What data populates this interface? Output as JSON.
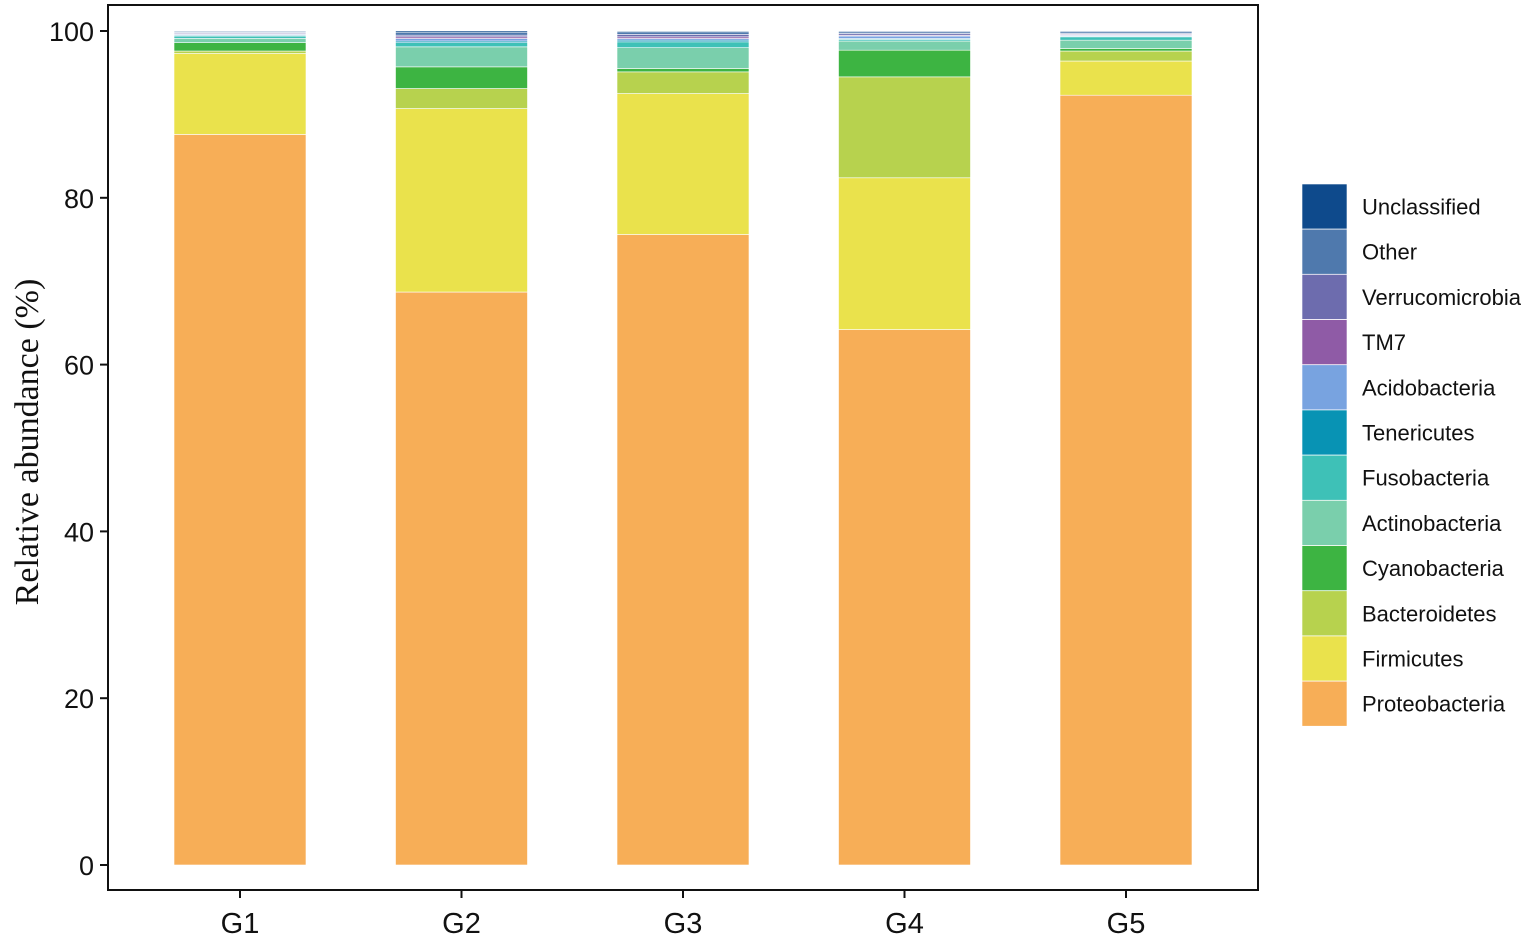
{
  "chart_data": {
    "type": "bar",
    "stacked": true,
    "title": "",
    "xlabel": "",
    "ylabel": "Relative abundance (%)",
    "ylim": [
      0,
      100
    ],
    "yticks": [
      0,
      20,
      40,
      60,
      80,
      100
    ],
    "categories": [
      "G1",
      "G2",
      "G3",
      "G4",
      "G5"
    ],
    "legend_position": "right",
    "grid": false,
    "series": [
      {
        "name": "Proteobacteria",
        "color": "#F7AE57",
        "values": [
          87.6,
          68.7,
          75.6,
          64.2,
          92.3
        ]
      },
      {
        "name": "Firmicutes",
        "color": "#EAE24C",
        "values": [
          9.7,
          22.0,
          16.9,
          18.2,
          4.1
        ]
      },
      {
        "name": "Bacteroidetes",
        "color": "#B7D24E",
        "values": [
          0.3,
          2.4,
          2.6,
          12.1,
          1.2
        ]
      },
      {
        "name": "Cyanobacteria",
        "color": "#3DB442",
        "values": [
          1.0,
          2.6,
          0.4,
          3.2,
          0.3
        ]
      },
      {
        "name": "Actinobacteria",
        "color": "#7ACFAC",
        "values": [
          0.5,
          2.4,
          2.5,
          1.1,
          1.0
        ]
      },
      {
        "name": "Fusobacteria",
        "color": "#3EC1B7",
        "values": [
          0.3,
          0.5,
          0.7,
          0.2,
          0.4
        ]
      },
      {
        "name": "Tenericutes",
        "color": "#0893B4",
        "values": [
          0.1,
          0.2,
          0.2,
          0.1,
          0.1
        ]
      },
      {
        "name": "Acidobacteria",
        "color": "#78A3E0",
        "values": [
          0.1,
          0.3,
          0.2,
          0.3,
          0.1
        ]
      },
      {
        "name": "TM7",
        "color": "#8F5BA6",
        "values": [
          0.1,
          0.2,
          0.2,
          0.1,
          0.1
        ]
      },
      {
        "name": "Verrucomicrobia",
        "color": "#6D6CAE",
        "values": [
          0.1,
          0.2,
          0.3,
          0.2,
          0.1
        ]
      },
      {
        "name": "Other",
        "color": "#4F79AD",
        "values": [
          0.1,
          0.3,
          0.3,
          0.2,
          0.2
        ]
      },
      {
        "name": "Unclassified",
        "color": "#0E4A8C",
        "values": [
          0.1,
          0.2,
          0.1,
          0.1,
          0.1
        ]
      }
    ]
  }
}
